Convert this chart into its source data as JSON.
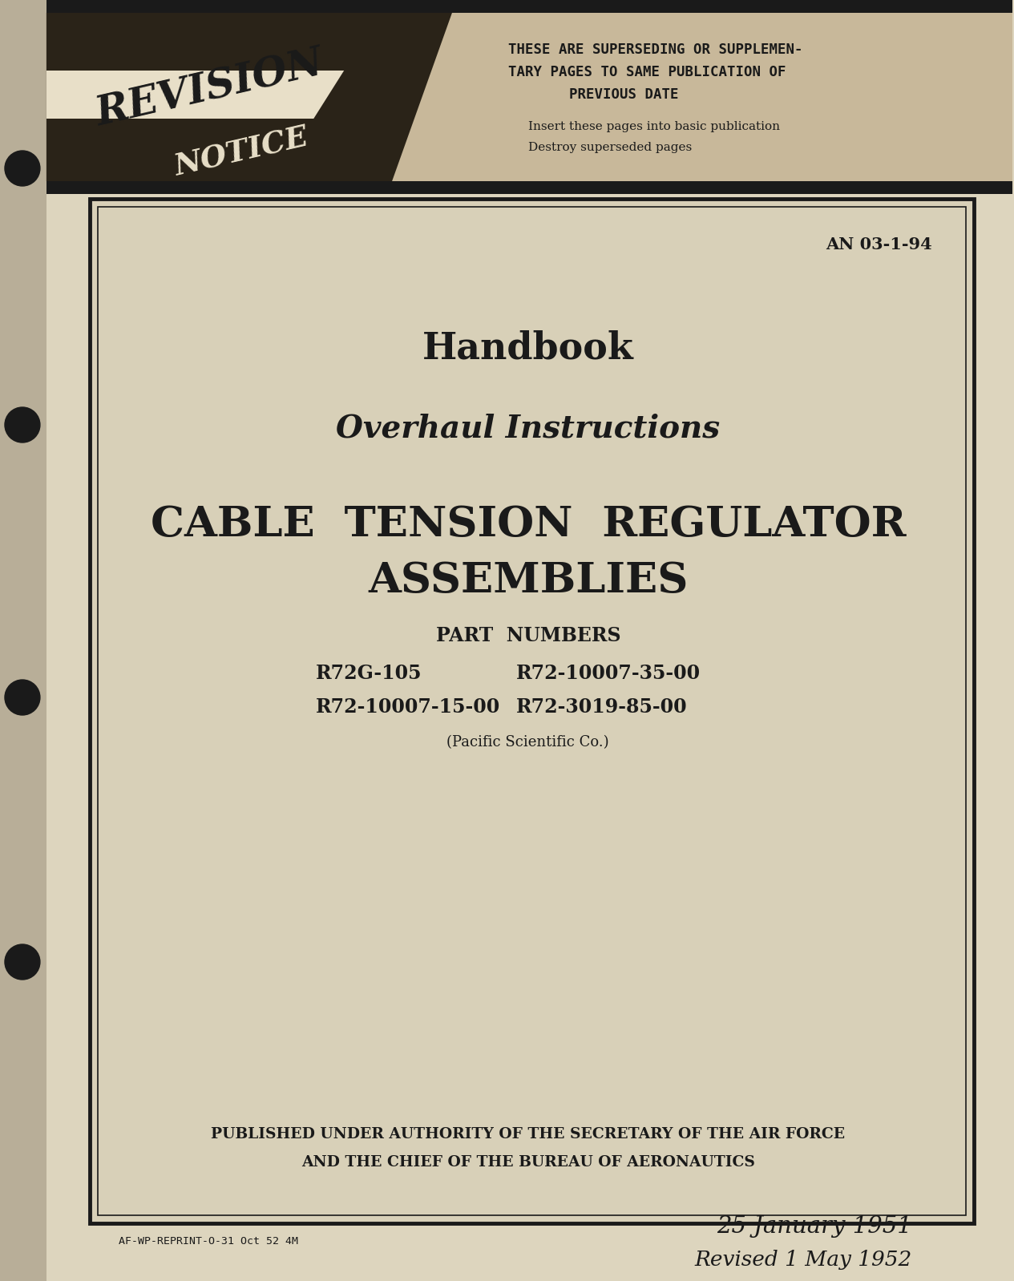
{
  "bg_color": "#ddd5be",
  "page_bg": "#ddd5be",
  "border_color": "#1a1a1a",
  "text_color": "#1a1a1a",
  "an_number": "AN 03-1-94",
  "handbook_label": "Handbook",
  "subtitle": "Overhaul Instructions",
  "main_title_line1": "CABLE  TENSION  REGULATOR",
  "main_title_line2": "ASSEMBLIES",
  "part_numbers_label": "PART  NUMBERS",
  "part_number_1": "R72G-105",
  "part_number_2": "R72-10007-35-00",
  "part_number_3": "R72-10007-15-00",
  "part_number_4": "R72-3019-85-00",
  "manufacturer": "(Pacific Scientific Co.)",
  "published_line1": "PUBLISHED UNDER AUTHORITY OF THE SECRETARY OF THE AIR FORCE",
  "published_line2": "AND THE CHIEF OF THE BUREAU OF AERONAUTICS",
  "footer_left": "AF-WP-REPRINT-O-31 Oct 52 4M",
  "date_line1": "25 January 1951",
  "date_line2": "Revised 1 May 1952",
  "revision_notice_line1": "THESE ARE SUPERSEDING OR SUPPLEMEN-",
  "revision_notice_line2": "TARY PAGES TO SAME PUBLICATION OF",
  "revision_notice_line3": "PREVIOUS DATE",
  "revision_insert": "Insert these pages into basic publication",
  "revision_destroy": "Destroy superseded pages",
  "revision_text1": "REVISION",
  "revision_text2": "NOTICE",
  "header_bg": "#c8b89a",
  "revision_banner_bg": "#2a2318",
  "stripe_color": "#e8dfc8",
  "binding_color": "#b8ae98",
  "hole_color": "#1a1a1a",
  "main_doc_bg": "#d8d0b8"
}
